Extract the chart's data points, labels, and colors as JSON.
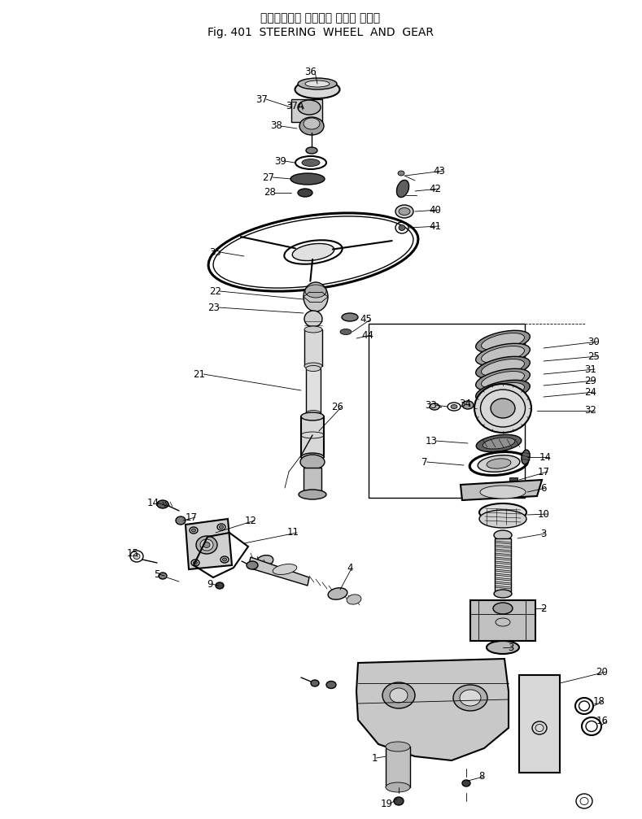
{
  "title_jp": "ステアリング ホイール および ギヤー",
  "title_en": "Fig. 401  STEERING  WHEEL  AND  GEAR",
  "bg_color": "#ffffff",
  "fig_width": 7.89,
  "fig_height": 10.07,
  "dpi": 100
}
